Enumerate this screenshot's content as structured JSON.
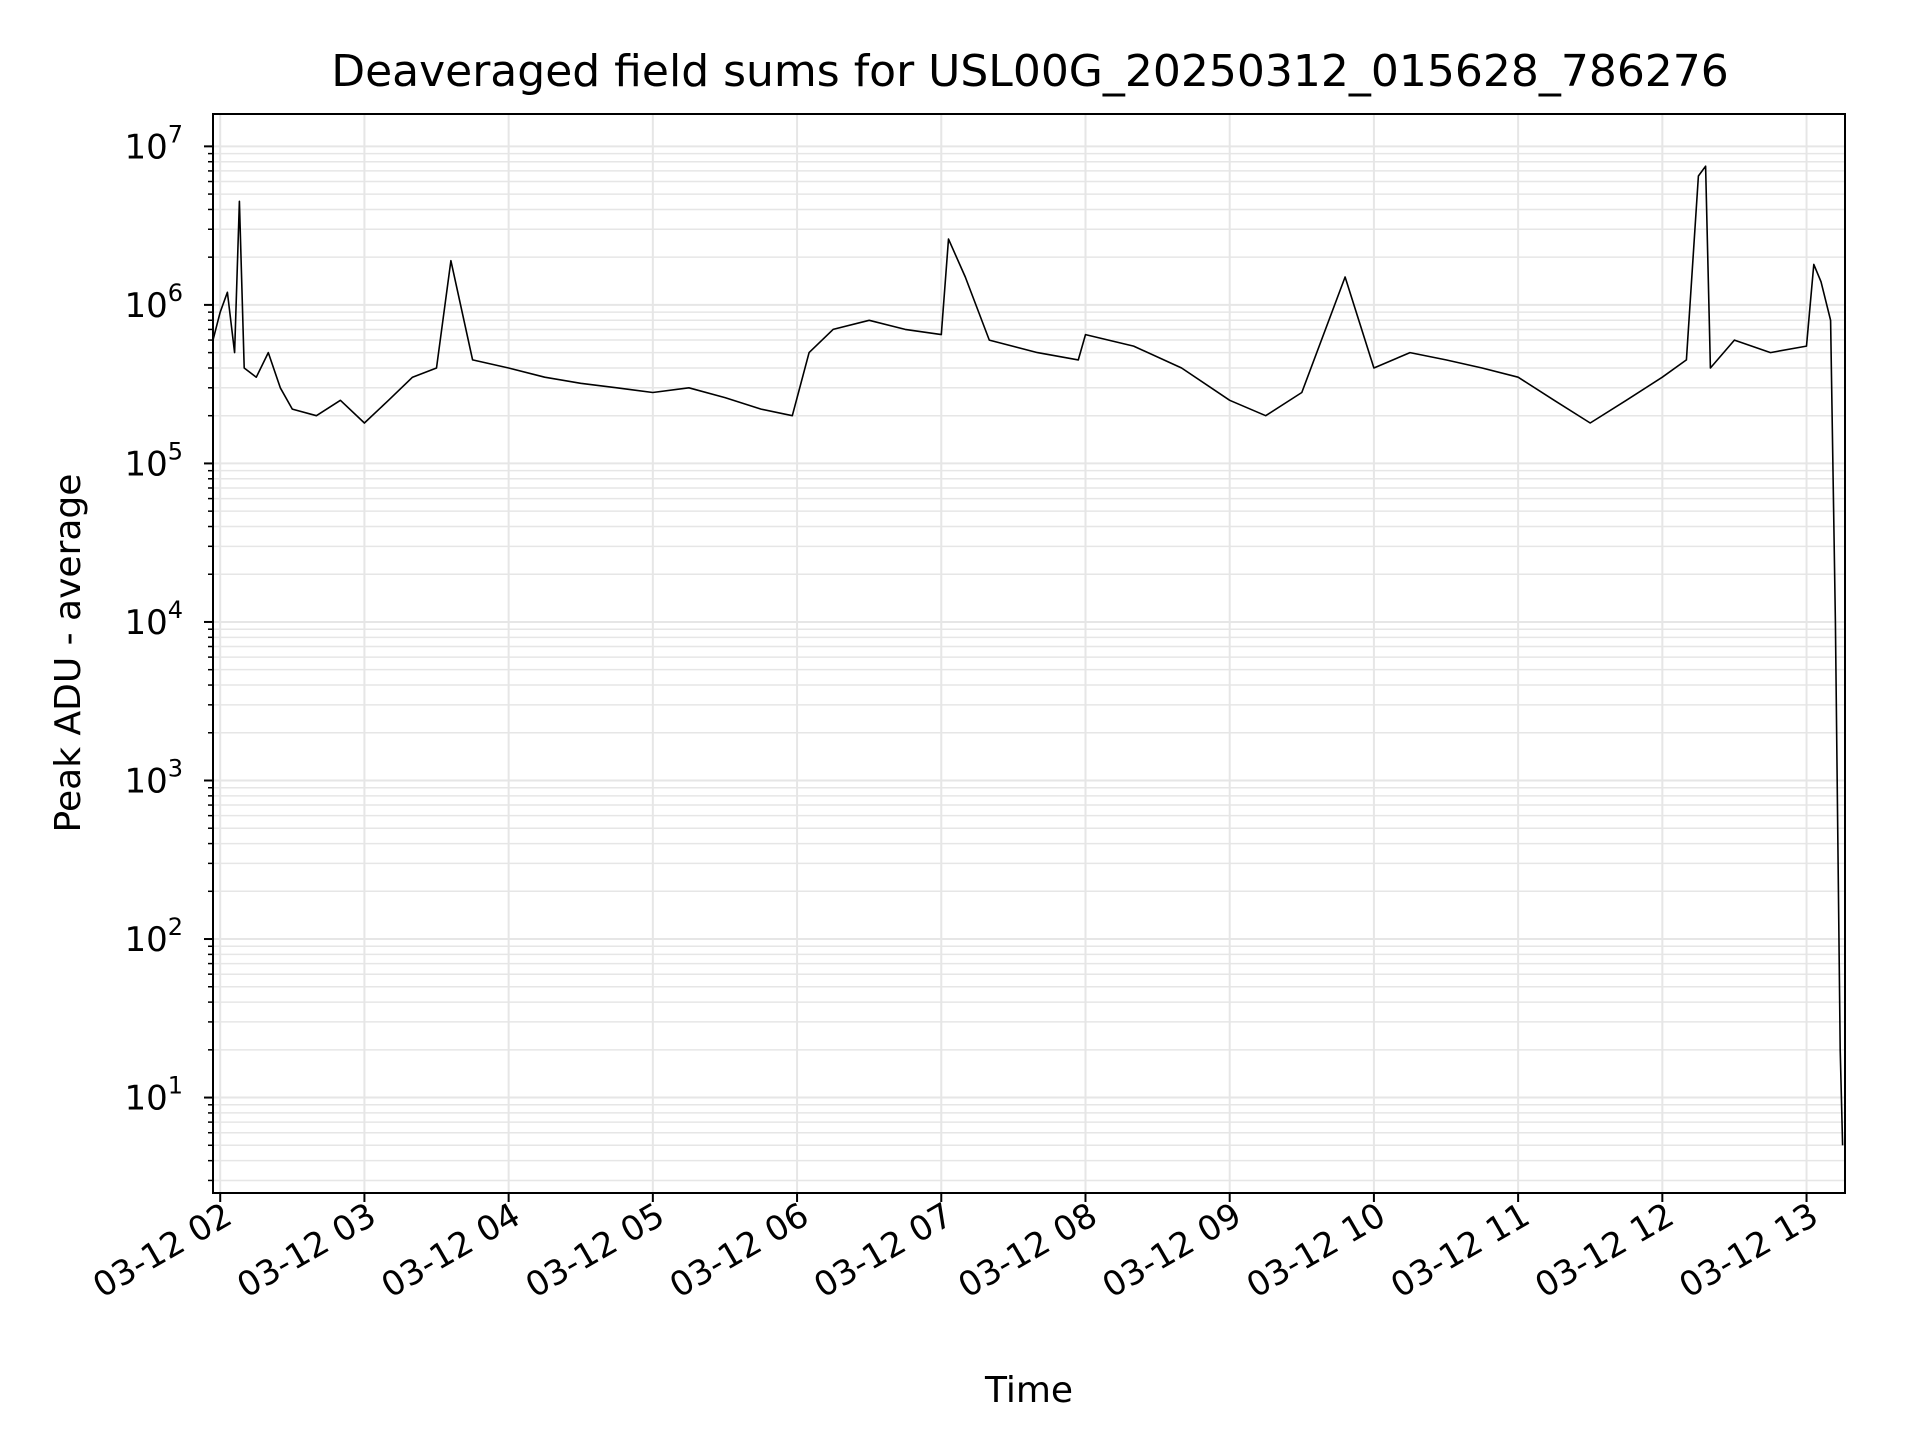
{
  "chart_data": {
    "type": "line",
    "title": "Deaveraged field sums for USL00G_20250312_015628_786276",
    "xlabel": "Time",
    "ylabel": "Peak ADU - average",
    "x_scale": "time",
    "y_scale": "log",
    "xlim": [
      "2025-03-12T01:57:00",
      "2025-03-12T13:16:00"
    ],
    "ylim": [
      2.5,
      16000000
    ],
    "grid": true,
    "legend": "none",
    "line_color": "#000000",
    "grid_color": "#e6e6e6",
    "x_ticks": [
      {
        "value": "2025-03-12T02:00:00",
        "label": "03-12 02"
      },
      {
        "value": "2025-03-12T03:00:00",
        "label": "03-12 03"
      },
      {
        "value": "2025-03-12T04:00:00",
        "label": "03-12 04"
      },
      {
        "value": "2025-03-12T05:00:00",
        "label": "03-12 05"
      },
      {
        "value": "2025-03-12T06:00:00",
        "label": "03-12 06"
      },
      {
        "value": "2025-03-12T07:00:00",
        "label": "03-12 07"
      },
      {
        "value": "2025-03-12T08:00:00",
        "label": "03-12 08"
      },
      {
        "value": "2025-03-12T09:00:00",
        "label": "03-12 09"
      },
      {
        "value": "2025-03-12T10:00:00",
        "label": "03-12 10"
      },
      {
        "value": "2025-03-12T11:00:00",
        "label": "03-12 11"
      },
      {
        "value": "2025-03-12T12:00:00",
        "label": "03-12 12"
      },
      {
        "value": "2025-03-12T13:00:00",
        "label": "03-12 13"
      }
    ],
    "y_ticks": [
      {
        "value": 10,
        "base": "10",
        "exp": "1"
      },
      {
        "value": 100,
        "base": "10",
        "exp": "2"
      },
      {
        "value": 1000,
        "base": "10",
        "exp": "3"
      },
      {
        "value": 10000,
        "base": "10",
        "exp": "4"
      },
      {
        "value": 100000,
        "base": "10",
        "exp": "5"
      },
      {
        "value": 1000000,
        "base": "10",
        "exp": "6"
      },
      {
        "value": 10000000,
        "base": "10",
        "exp": "7"
      }
    ],
    "series": [
      {
        "x": [
          "2025-03-12T01:57:00",
          "2025-03-12T02:00:00",
          "2025-03-12T02:03:00",
          "2025-03-12T02:06:00",
          "2025-03-12T02:08:00",
          "2025-03-12T02:10:00",
          "2025-03-12T02:15:00",
          "2025-03-12T02:20:00",
          "2025-03-12T02:25:00",
          "2025-03-12T02:30:00",
          "2025-03-12T02:40:00",
          "2025-03-12T02:50:00",
          "2025-03-12T03:00:00",
          "2025-03-12T03:10:00",
          "2025-03-12T03:20:00",
          "2025-03-12T03:30:00",
          "2025-03-12T03:36:00",
          "2025-03-12T03:45:00",
          "2025-03-12T04:00:00",
          "2025-03-12T04:15:00",
          "2025-03-12T04:30:00",
          "2025-03-12T04:45:00",
          "2025-03-12T05:00:00",
          "2025-03-12T05:15:00",
          "2025-03-12T05:30:00",
          "2025-03-12T05:45:00",
          "2025-03-12T05:58:00",
          "2025-03-12T06:05:00",
          "2025-03-12T06:15:00",
          "2025-03-12T06:30:00",
          "2025-03-12T06:45:00",
          "2025-03-12T07:00:00",
          "2025-03-12T07:03:00",
          "2025-03-12T07:10:00",
          "2025-03-12T07:20:00",
          "2025-03-12T07:40:00",
          "2025-03-12T07:57:00",
          "2025-03-12T08:00:00",
          "2025-03-12T08:20:00",
          "2025-03-12T08:40:00",
          "2025-03-12T09:00:00",
          "2025-03-12T09:15:00",
          "2025-03-12T09:30:00",
          "2025-03-12T09:48:00",
          "2025-03-12T10:00:00",
          "2025-03-12T10:15:00",
          "2025-03-12T10:30:00",
          "2025-03-12T10:45:00",
          "2025-03-12T11:00:00",
          "2025-03-12T11:15:00",
          "2025-03-12T11:30:00",
          "2025-03-12T11:45:00",
          "2025-03-12T12:00:00",
          "2025-03-12T12:10:00",
          "2025-03-12T12:15:00",
          "2025-03-12T12:18:00",
          "2025-03-12T12:20:00",
          "2025-03-12T12:30:00",
          "2025-03-12T12:45:00",
          "2025-03-12T13:00:00",
          "2025-03-12T13:03:00",
          "2025-03-12T13:06:00",
          "2025-03-12T13:10:00",
          "2025-03-12T13:12:00",
          "2025-03-12T13:14:00",
          "2025-03-12T13:15:00"
        ],
        "y": [
          600000,
          900000,
          1200000,
          500000,
          4500000,
          400000,
          350000,
          500000,
          300000,
          220000,
          200000,
          250000,
          180000,
          250000,
          350000,
          400000,
          1900000,
          450000,
          400000,
          350000,
          320000,
          300000,
          280000,
          300000,
          260000,
          220000,
          200000,
          500000,
          700000,
          800000,
          700000,
          650000,
          2600000,
          1500000,
          600000,
          500000,
          450000,
          650000,
          550000,
          400000,
          250000,
          200000,
          280000,
          1500000,
          400000,
          500000,
          450000,
          400000,
          350000,
          250000,
          180000,
          250000,
          350000,
          450000,
          6500000,
          7500000,
          400000,
          600000,
          500000,
          550000,
          1800000,
          1400000,
          800000,
          10000,
          20,
          5
        ]
      }
    ]
  }
}
